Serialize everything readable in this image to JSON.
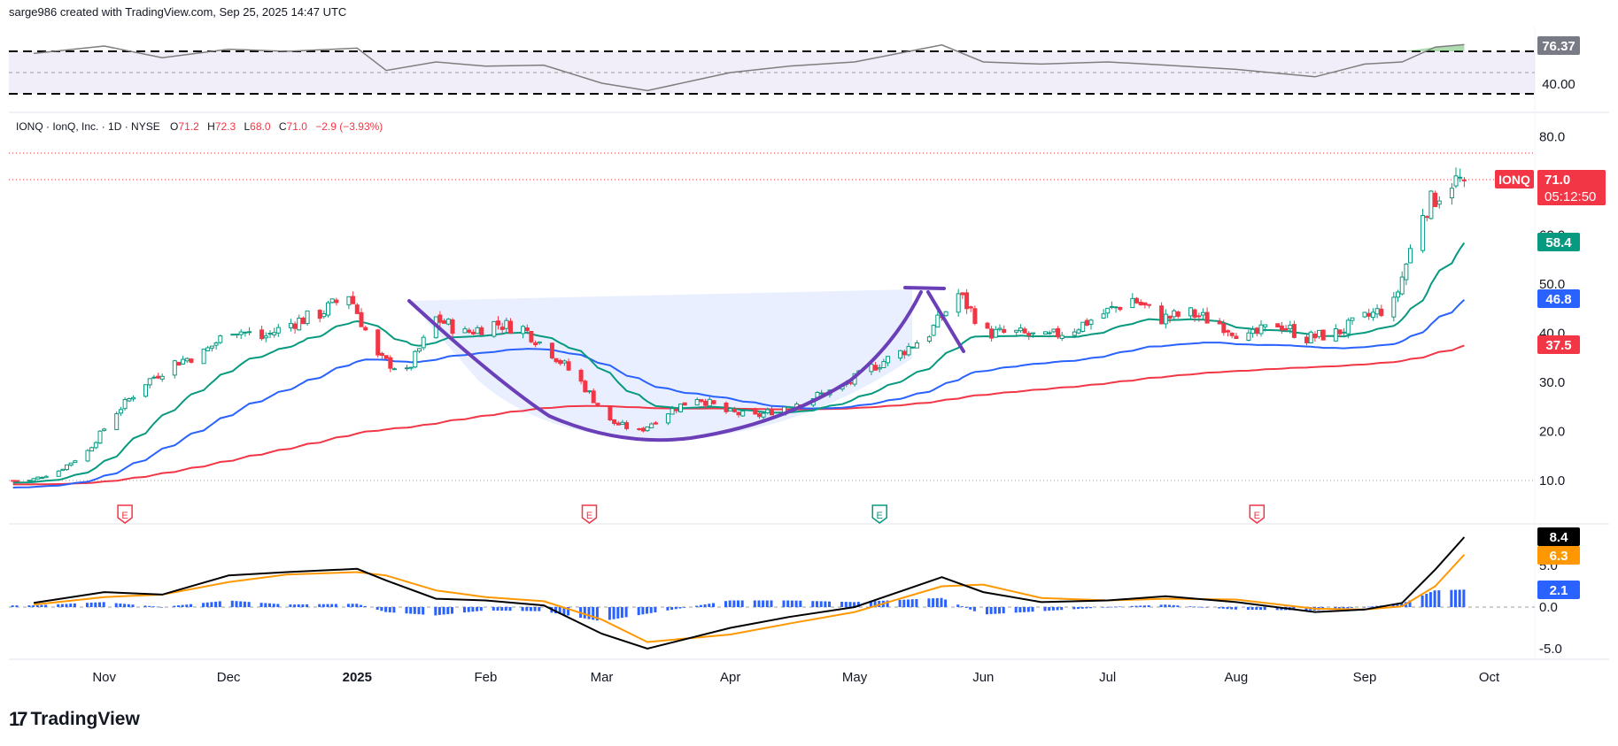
{
  "header": {
    "credit": "sarge986 created with TradingView.com, Sep 25, 2025 14:47 UTC"
  },
  "legend": {
    "symbol": "IONQ · IonQ, Inc. · 1D · NYSE",
    "o_label": "O",
    "o_value": "71.2",
    "h_label": "H",
    "h_value": "72.3",
    "l_label": "L",
    "l_value": "68.0",
    "c_label": "C",
    "c_value": "71.0",
    "change": "−2.9 (−3.93%)"
  },
  "price_badges": {
    "ticker": "IONQ",
    "last": "71.0",
    "countdown": "05:12:50",
    "ema20": "58.4",
    "ema50": "46.8",
    "ema200": "37.5"
  },
  "rsi_badges": {
    "value": "76.37",
    "level": "40.00"
  },
  "macd_badges": {
    "macd": "8.4",
    "signal": "6.3",
    "hist": "2.1"
  },
  "footer": {
    "brand": "TradingView"
  },
  "colors": {
    "up": "#089981",
    "down": "#f23645",
    "ema20": "#089981",
    "ema50": "#2962ff",
    "ema200": "#f23645",
    "cup": "#6a3fb8",
    "macd": "#000000",
    "signal": "#ff9800",
    "hist": "#2962ff",
    "rsi": "#7e7e7e",
    "rsi_band": "#7e57c2"
  },
  "chart_data": [
    {
      "type": "line",
      "name": "RSI",
      "yticks": [
        40.0
      ],
      "levels": [
        70,
        30
      ],
      "x": [
        "2024-10-15",
        "2024-11-01",
        "2024-11-15",
        "2024-12-01",
        "2024-12-15",
        "2025-01-01",
        "2025-01-08",
        "2025-01-20",
        "2025-02-01",
        "2025-02-15",
        "2025-03-01",
        "2025-03-12",
        "2025-04-01",
        "2025-04-15",
        "2025-05-01",
        "2025-05-22",
        "2025-06-01",
        "2025-06-15",
        "2025-07-01",
        "2025-07-15",
        "2025-08-01",
        "2025-08-20",
        "2025-09-01",
        "2025-09-10",
        "2025-09-18",
        "2025-09-25"
      ],
      "values": [
        68,
        75,
        64,
        72,
        70,
        73,
        52,
        60,
        56,
        57,
        40,
        33,
        50,
        56,
        60,
        76,
        60,
        58,
        60,
        57,
        53,
        46,
        58,
        60,
        74,
        76.37
      ]
    },
    {
      "type": "candlestick",
      "symbol": "IONQ",
      "yticks": [
        10.0,
        20.0,
        30.0,
        40.0,
        50.0,
        60.0,
        70.0,
        80.0
      ],
      "x": [
        "2024-10-14",
        "2024-10-21",
        "2024-10-28",
        "2024-11-04",
        "2024-11-11",
        "2024-11-18",
        "2024-11-25",
        "2024-12-02",
        "2024-12-09",
        "2024-12-16",
        "2024-12-23",
        "2024-12-30",
        "2025-01-06",
        "2025-01-13",
        "2025-01-20",
        "2025-01-27",
        "2025-02-03",
        "2025-02-10",
        "2025-02-17",
        "2025-02-24",
        "2025-03-03",
        "2025-03-10",
        "2025-03-17",
        "2025-03-24",
        "2025-03-31",
        "2025-04-07",
        "2025-04-14",
        "2025-04-21",
        "2025-04-28",
        "2025-05-05",
        "2025-05-12",
        "2025-05-19",
        "2025-05-26",
        "2025-06-02",
        "2025-06-09",
        "2025-06-16",
        "2025-06-23",
        "2025-06-30",
        "2025-07-07",
        "2025-07-14",
        "2025-07-21",
        "2025-07-28",
        "2025-08-04",
        "2025-08-11",
        "2025-08-18",
        "2025-08-25",
        "2025-09-01",
        "2025-09-08",
        "2025-09-15",
        "2025-09-22"
      ],
      "close": [
        10,
        12,
        16,
        24,
        30,
        34,
        36,
        41,
        39,
        42,
        44,
        48,
        35,
        32,
        43,
        40,
        42,
        41,
        36,
        30,
        22,
        20,
        24,
        27,
        24,
        23,
        25,
        27,
        29,
        33,
        36,
        40,
        48,
        40,
        40,
        39,
        41,
        44,
        47,
        43,
        44,
        42,
        39,
        42,
        39,
        40,
        43,
        46,
        65,
        71
      ],
      "ema20_last": 58.4,
      "ema50_last": 46.8,
      "ema200_last": 37.5,
      "last": {
        "open": 71.2,
        "high": 72.3,
        "low": 68.0,
        "close": 71.0,
        "change": -2.9,
        "change_pct": -3.93
      },
      "earnings_markers": [
        "2024-11-06",
        "2025-02-26",
        "2025-05-07",
        "2025-08-06"
      ]
    },
    {
      "type": "line",
      "name": "MACD",
      "yticks": [
        -5.0,
        0.0,
        5.0
      ],
      "x": [
        "2024-10-15",
        "2024-11-01",
        "2024-11-15",
        "2024-12-01",
        "2024-12-15",
        "2025-01-01",
        "2025-01-08",
        "2025-01-20",
        "2025-02-01",
        "2025-02-15",
        "2025-03-01",
        "2025-03-12",
        "2025-04-01",
        "2025-04-15",
        "2025-05-01",
        "2025-05-22",
        "2025-06-01",
        "2025-06-15",
        "2025-07-01",
        "2025-07-15",
        "2025-08-01",
        "2025-08-20",
        "2025-09-01",
        "2025-09-10",
        "2025-09-18",
        "2025-09-25"
      ],
      "macd": [
        0.5,
        1.8,
        1.5,
        3.8,
        4.2,
        4.6,
        3.2,
        1.0,
        0.8,
        0.2,
        -3.2,
        -5.0,
        -2.5,
        -1.2,
        0.0,
        3.6,
        1.8,
        0.6,
        0.8,
        1.3,
        0.6,
        -0.6,
        -0.3,
        0.5,
        4.5,
        8.4
      ],
      "signal": [
        0.3,
        1.2,
        1.5,
        3.0,
        3.9,
        4.2,
        3.8,
        2.0,
        1.2,
        0.7,
        -1.5,
        -4.2,
        -3.3,
        -2.0,
        -0.6,
        2.5,
        2.7,
        1.1,
        0.8,
        1.0,
        0.9,
        -0.2,
        -0.3,
        0.1,
        2.5,
        6.3
      ],
      "hist_last": 2.1
    }
  ],
  "months": [
    "Nov",
    "Dec",
    "2025",
    "Feb",
    "Mar",
    "Apr",
    "May",
    "Jun",
    "Jul",
    "Aug",
    "Sep",
    "Oct"
  ],
  "earnings_label": "E"
}
